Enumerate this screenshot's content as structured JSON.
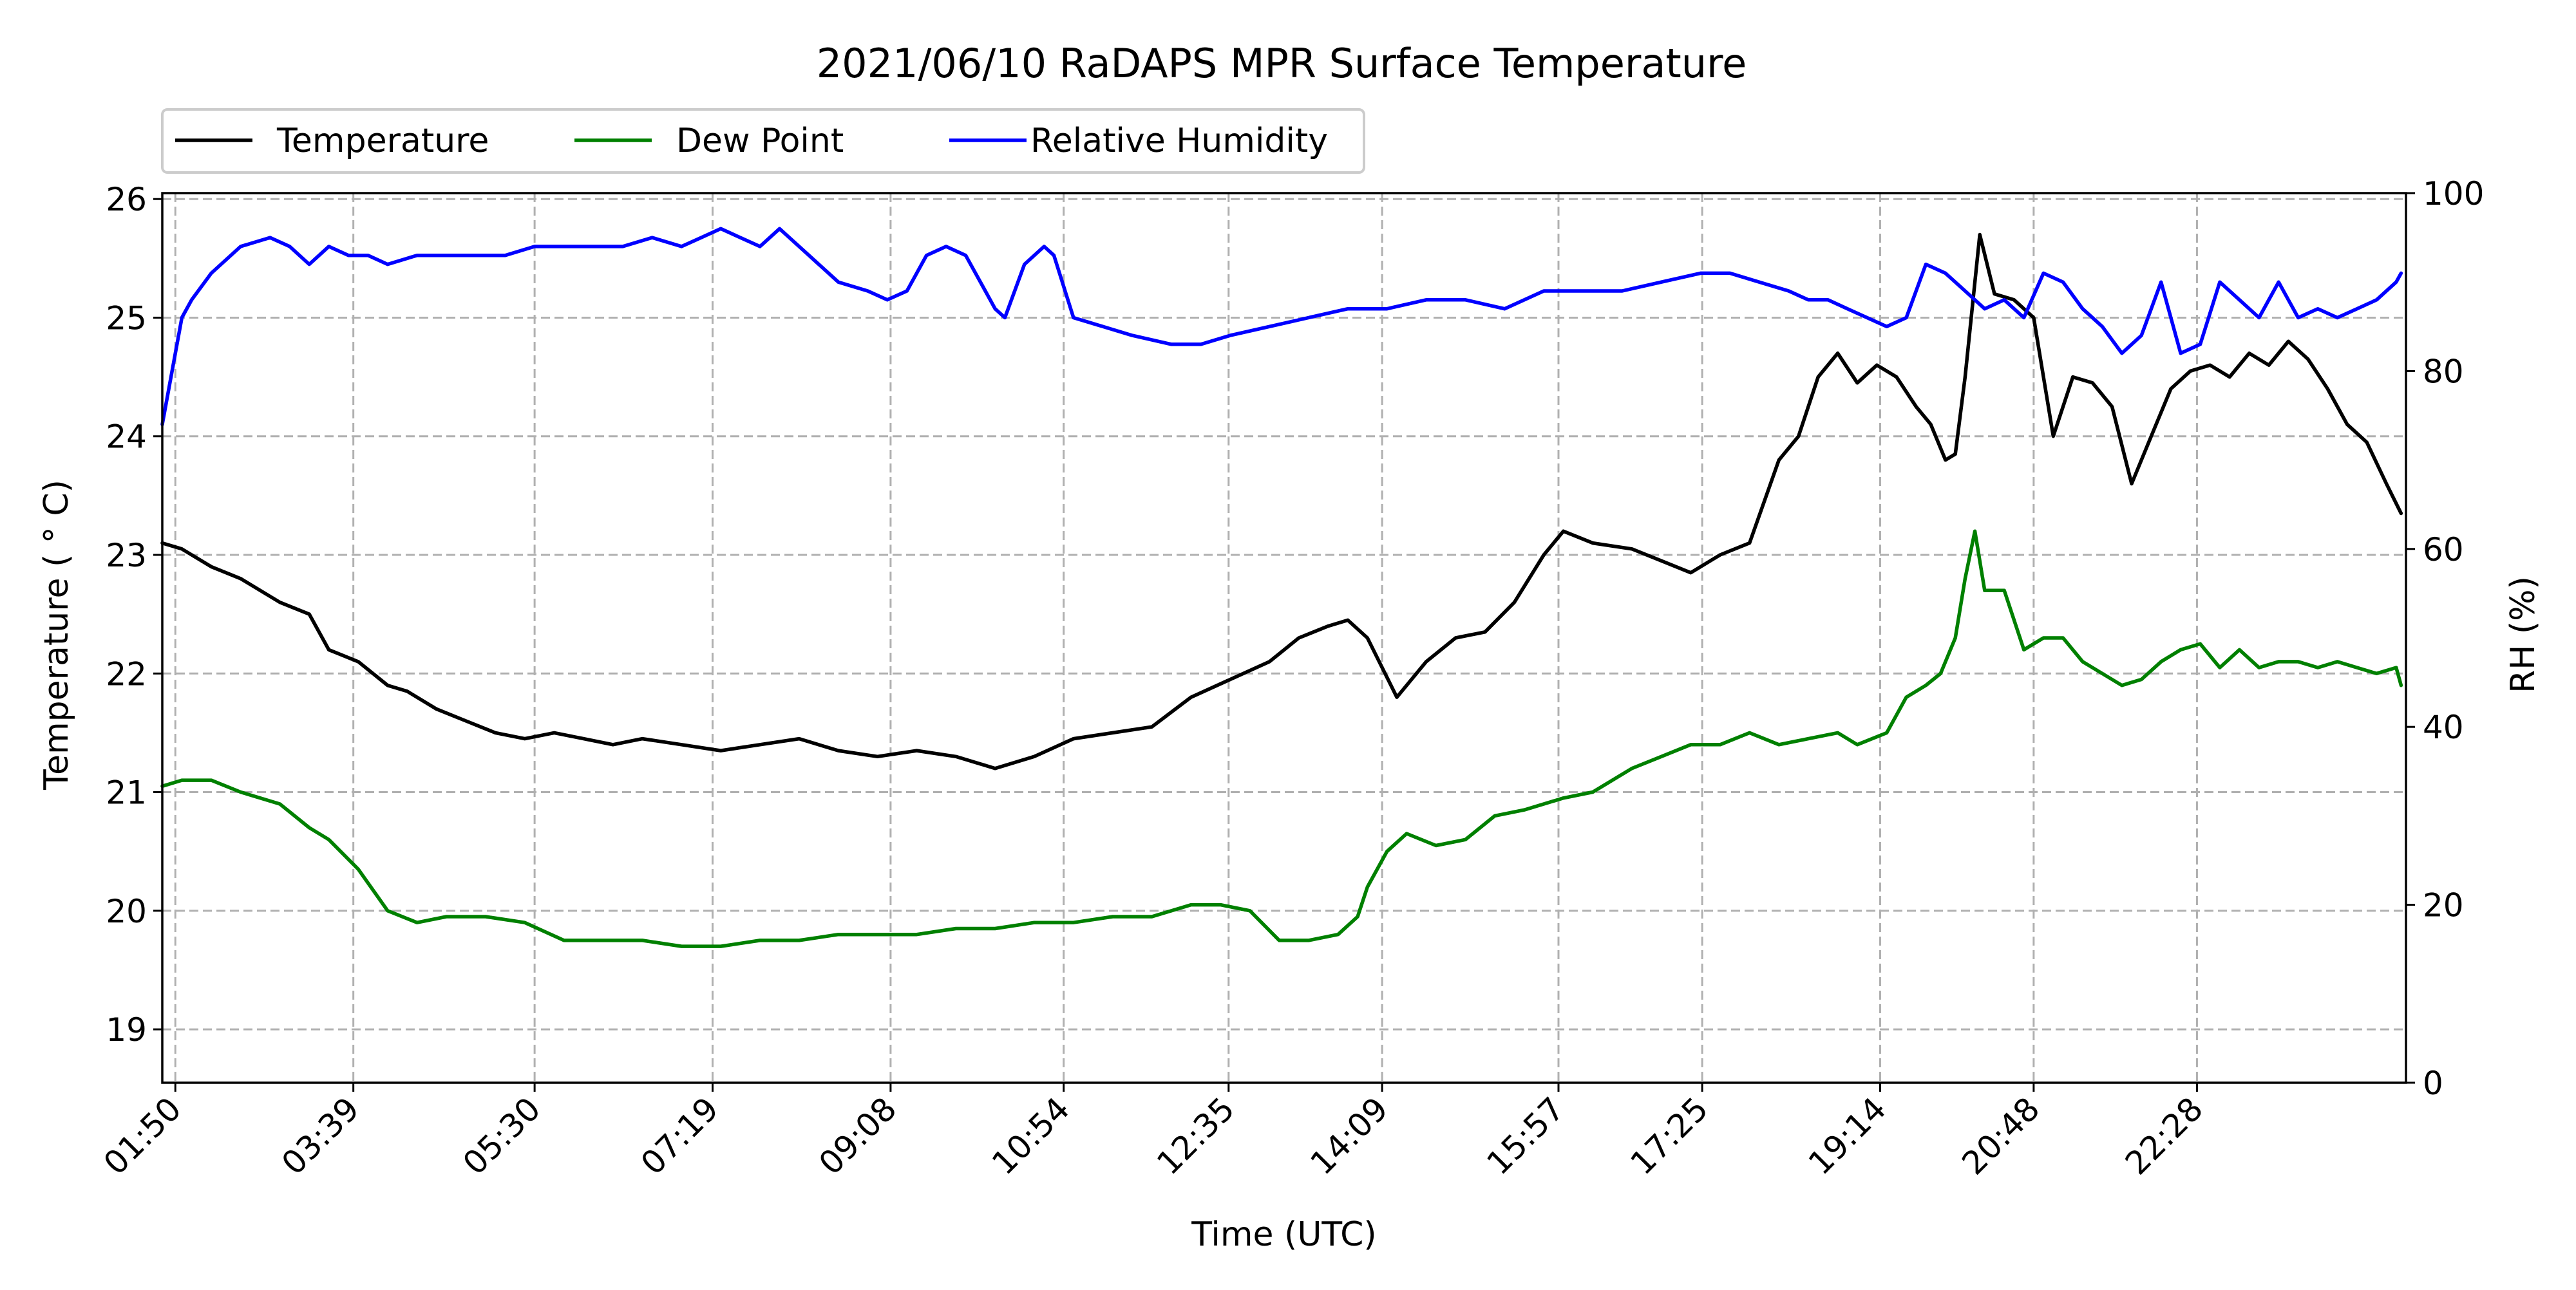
{
  "chart_data": {
    "type": "line",
    "title": "2021/06/10 RaDAPS MPR Surface Temperature",
    "xlabel": "Time (UTC)",
    "ylabel": "Temperature ($^\\circ$C)",
    "ylabel_display": "Temperature ( ° C)",
    "y2label": "RH (%)",
    "xlim": [
      1.7,
      24.6
    ],
    "ylim": [
      18.55,
      26.05
    ],
    "y2lim": [
      0,
      100
    ],
    "grid": true,
    "legend_placement": "top-left, above plot",
    "x_tick_values": [
      1.8333,
      3.65,
      5.5,
      7.3167,
      9.1333,
      10.9,
      12.5833,
      14.15,
      15.95,
      17.4167,
      19.2333,
      20.8,
      22.4667
    ],
    "x_tick_labels": [
      "01:50",
      "03:39",
      "05:30",
      "07:19",
      "09:08",
      "10:54",
      "12:35",
      "14:09",
      "15:57",
      "17:25",
      "19:14",
      "20:48",
      "22:28"
    ],
    "y_tick_values": [
      19,
      20,
      21,
      22,
      23,
      24,
      25,
      26
    ],
    "y_tick_labels": [
      "19",
      "20",
      "21",
      "22",
      "23",
      "24",
      "25",
      "26"
    ],
    "y2_tick_values": [
      0,
      20,
      40,
      60,
      80,
      100
    ],
    "y2_tick_labels": [
      "0",
      "20",
      "40",
      "60",
      "80",
      "100"
    ],
    "series": [
      {
        "name": "Temperature",
        "axis": "left",
        "color": "#000000",
        "x": [
          1.7,
          1.9,
          2.2,
          2.5,
          2.9,
          3.2,
          3.4,
          3.7,
          4.0,
          4.2,
          4.5,
          4.8,
          5.1,
          5.4,
          5.7,
          6.0,
          6.3,
          6.6,
          7.0,
          7.4,
          7.8,
          8.2,
          8.6,
          9.0,
          9.4,
          9.8,
          10.2,
          10.6,
          11.0,
          11.4,
          11.8,
          12.2,
          12.6,
          13.0,
          13.3,
          13.6,
          13.8,
          14.0,
          14.3,
          14.6,
          14.9,
          15.2,
          15.5,
          15.8,
          16.0,
          16.3,
          16.7,
          17.0,
          17.3,
          17.6,
          17.9,
          18.2,
          18.4,
          18.6,
          18.8,
          19.0,
          19.2,
          19.4,
          19.6,
          19.75,
          19.9,
          20.0,
          20.1,
          20.25,
          20.4,
          20.6,
          20.8,
          21.0,
          21.2,
          21.4,
          21.6,
          21.8,
          22.0,
          22.2,
          22.4,
          22.6,
          22.8,
          23.0,
          23.2,
          23.4,
          23.6,
          23.8,
          24.0,
          24.2,
          24.4,
          24.55
        ],
        "y": [
          23.1,
          23.05,
          22.9,
          22.8,
          22.6,
          22.5,
          22.2,
          22.1,
          21.9,
          21.85,
          21.7,
          21.6,
          21.5,
          21.45,
          21.5,
          21.45,
          21.4,
          21.45,
          21.4,
          21.35,
          21.4,
          21.45,
          21.35,
          21.3,
          21.35,
          21.3,
          21.2,
          21.3,
          21.45,
          21.5,
          21.55,
          21.8,
          21.95,
          22.1,
          22.3,
          22.4,
          22.45,
          22.3,
          21.8,
          22.1,
          22.3,
          22.35,
          22.6,
          23.0,
          23.2,
          23.1,
          23.05,
          22.95,
          22.85,
          23.0,
          23.1,
          23.8,
          24.0,
          24.5,
          24.7,
          24.45,
          24.6,
          24.5,
          24.25,
          24.1,
          23.8,
          23.85,
          24.5,
          25.7,
          25.2,
          25.15,
          25.0,
          24.0,
          24.5,
          24.45,
          24.25,
          23.6,
          24.0,
          24.4,
          24.55,
          24.6,
          24.5,
          24.7,
          24.6,
          24.8,
          24.65,
          24.4,
          24.1,
          23.95,
          23.6,
          23.35
        ]
      },
      {
        "name": "Dew Point",
        "axis": "left",
        "color": "#008000",
        "x": [
          1.7,
          1.9,
          2.2,
          2.5,
          2.9,
          3.2,
          3.4,
          3.7,
          4.0,
          4.3,
          4.6,
          5.0,
          5.4,
          5.8,
          6.2,
          6.6,
          7.0,
          7.4,
          7.8,
          8.2,
          8.6,
          9.0,
          9.4,
          9.8,
          10.2,
          10.6,
          11.0,
          11.4,
          11.8,
          12.2,
          12.5,
          12.8,
          13.1,
          13.4,
          13.7,
          13.9,
          14.0,
          14.2,
          14.4,
          14.7,
          15.0,
          15.3,
          15.6,
          16.0,
          16.3,
          16.7,
          17.0,
          17.3,
          17.6,
          17.9,
          18.2,
          18.5,
          18.8,
          19.0,
          19.3,
          19.5,
          19.7,
          19.85,
          20.0,
          20.1,
          20.2,
          20.3,
          20.5,
          20.7,
          20.9,
          21.1,
          21.3,
          21.5,
          21.7,
          21.9,
          22.1,
          22.3,
          22.5,
          22.7,
          22.9,
          23.1,
          23.3,
          23.5,
          23.7,
          23.9,
          24.1,
          24.3,
          24.5,
          24.55
        ],
        "y": [
          21.05,
          21.1,
          21.1,
          21.0,
          20.9,
          20.7,
          20.6,
          20.35,
          20.0,
          19.9,
          19.95,
          19.95,
          19.9,
          19.75,
          19.75,
          19.75,
          19.7,
          19.7,
          19.75,
          19.75,
          19.8,
          19.8,
          19.8,
          19.85,
          19.85,
          19.9,
          19.9,
          19.95,
          19.95,
          20.05,
          20.05,
          20.0,
          19.75,
          19.75,
          19.8,
          19.95,
          20.2,
          20.5,
          20.65,
          20.55,
          20.6,
          20.8,
          20.85,
          20.95,
          21.0,
          21.2,
          21.3,
          21.4,
          21.4,
          21.5,
          21.4,
          21.45,
          21.5,
          21.4,
          21.5,
          21.8,
          21.9,
          22.0,
          22.3,
          22.8,
          23.2,
          22.7,
          22.7,
          22.2,
          22.3,
          22.3,
          22.1,
          22.0,
          21.9,
          21.95,
          22.1,
          22.2,
          22.25,
          22.05,
          22.2,
          22.05,
          22.1,
          22.1,
          22.05,
          22.1,
          22.05,
          22.0,
          22.05,
          21.9
        ]
      },
      {
        "name": "Relative Humidity",
        "axis": "right",
        "color": "#0000ff",
        "x": [
          1.7,
          1.8,
          1.9,
          2.0,
          2.2,
          2.5,
          2.8,
          3.0,
          3.2,
          3.4,
          3.6,
          3.8,
          4.0,
          4.3,
          4.6,
          4.9,
          5.2,
          5.5,
          5.8,
          6.1,
          6.4,
          6.7,
          7.0,
          7.2,
          7.4,
          7.6,
          7.8,
          8.0,
          8.3,
          8.6,
          8.9,
          9.1,
          9.3,
          9.5,
          9.7,
          9.9,
          10.1,
          10.2,
          10.3,
          10.5,
          10.7,
          10.8,
          11.0,
          11.3,
          11.6,
          12.0,
          12.3,
          12.6,
          13.0,
          13.4,
          13.8,
          14.2,
          14.6,
          15.0,
          15.4,
          15.8,
          16.2,
          16.6,
          17.0,
          17.4,
          17.7,
          18.0,
          18.3,
          18.5,
          18.7,
          18.9,
          19.1,
          19.3,
          19.5,
          19.7,
          19.9,
          20.1,
          20.3,
          20.5,
          20.7,
          20.9,
          21.1,
          21.3,
          21.5,
          21.7,
          21.9,
          22.1,
          22.3,
          22.5,
          22.7,
          22.9,
          23.1,
          23.3,
          23.5,
          23.7,
          23.9,
          24.1,
          24.3,
          24.5,
          24.55
        ],
        "y": [
          74,
          80,
          86,
          88,
          91,
          94,
          95,
          94,
          92,
          94,
          93,
          93,
          92,
          93,
          93,
          93,
          93,
          94,
          94,
          94,
          94,
          95,
          94,
          95,
          96,
          95,
          94,
          96,
          93,
          90,
          89,
          88,
          89,
          93,
          94,
          93,
          89,
          87,
          86,
          92,
          94,
          93,
          86,
          85,
          84,
          83,
          83,
          84,
          85,
          86,
          87,
          87,
          88,
          88,
          87,
          89,
          89,
          89,
          90,
          91,
          91,
          90,
          89,
          88,
          88,
          87,
          86,
          85,
          86,
          92,
          91,
          89,
          87,
          88,
          86,
          91,
          90,
          87,
          85,
          82,
          84,
          90,
          82,
          83,
          90,
          88,
          86,
          90,
          86,
          87,
          86,
          87,
          88,
          90,
          91
        ]
      }
    ]
  }
}
